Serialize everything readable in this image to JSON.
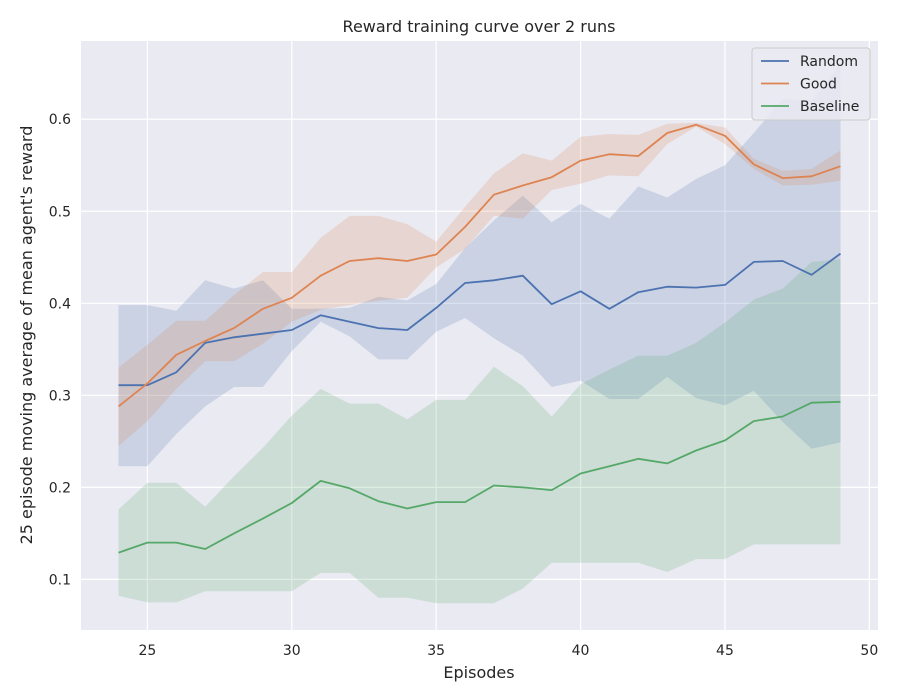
{
  "chart_data": {
    "type": "line",
    "title": "Reward training curve over 2 runs",
    "xlabel": "Episodes",
    "ylabel": "25 episode moving average of mean agent's reward",
    "xlim": [
      22.7,
      50.3
    ],
    "ylim": [
      0.045,
      0.685
    ],
    "xticks": [
      25,
      30,
      35,
      40,
      45,
      50
    ],
    "yticks": [
      0.1,
      0.2,
      0.3,
      0.4,
      0.5,
      0.6
    ],
    "grid": true,
    "legend_position": "top-right",
    "x": [
      24,
      25,
      26,
      27,
      28,
      29,
      30,
      31,
      32,
      33,
      34,
      35,
      36,
      37,
      38,
      39,
      40,
      41,
      42,
      43,
      44,
      45,
      46,
      47,
      48,
      49
    ],
    "series": [
      {
        "name": "Random",
        "color": "#4c72b0",
        "values": [
          0.311,
          0.311,
          0.325,
          0.357,
          0.363,
          0.367,
          0.371,
          0.387,
          0.38,
          0.373,
          0.371,
          0.395,
          0.422,
          0.425,
          0.43,
          0.399,
          0.413,
          0.394,
          0.412,
          0.418,
          0.417,
          0.42,
          0.445,
          0.446,
          0.431,
          0.454
        ],
        "lower": [
          0.223,
          0.223,
          0.258,
          0.288,
          0.309,
          0.309,
          0.348,
          0.38,
          0.364,
          0.339,
          0.339,
          0.369,
          0.384,
          0.362,
          0.343,
          0.309,
          0.316,
          0.296,
          0.296,
          0.32,
          0.297,
          0.289,
          0.305,
          0.271,
          0.242,
          0.249
        ],
        "upper": [
          0.398,
          0.398,
          0.392,
          0.425,
          0.416,
          0.425,
          0.394,
          0.394,
          0.395,
          0.407,
          0.403,
          0.421,
          0.46,
          0.49,
          0.517,
          0.488,
          0.508,
          0.492,
          0.527,
          0.515,
          0.535,
          0.55,
          0.585,
          0.622,
          0.62,
          0.66
        ]
      },
      {
        "name": "Good",
        "color": "#dd8452",
        "values": [
          0.288,
          0.313,
          0.344,
          0.359,
          0.373,
          0.394,
          0.406,
          0.43,
          0.446,
          0.449,
          0.446,
          0.453,
          0.483,
          0.518,
          0.528,
          0.537,
          0.555,
          0.562,
          0.56,
          0.585,
          0.594,
          0.582,
          0.551,
          0.536,
          0.538,
          0.549
        ],
        "lower": [
          0.245,
          0.272,
          0.307,
          0.337,
          0.337,
          0.356,
          0.38,
          0.393,
          0.398,
          0.403,
          0.406,
          0.439,
          0.459,
          0.495,
          0.492,
          0.523,
          0.53,
          0.539,
          0.538,
          0.573,
          0.592,
          0.573,
          0.546,
          0.528,
          0.529,
          0.533
        ],
        "upper": [
          0.33,
          0.355,
          0.381,
          0.381,
          0.409,
          0.434,
          0.434,
          0.471,
          0.495,
          0.495,
          0.486,
          0.467,
          0.505,
          0.541,
          0.563,
          0.555,
          0.581,
          0.584,
          0.583,
          0.595,
          0.596,
          0.591,
          0.557,
          0.544,
          0.546,
          0.566
        ]
      },
      {
        "name": "Baseline",
        "color": "#55a868",
        "values": [
          0.129,
          0.14,
          0.14,
          0.133,
          0.15,
          0.166,
          0.183,
          0.207,
          0.199,
          0.185,
          0.177,
          0.184,
          0.184,
          0.202,
          0.2,
          0.197,
          0.215,
          0.223,
          0.231,
          0.226,
          0.24,
          0.251,
          0.272,
          0.277,
          0.292,
          0.293
        ],
        "lower": [
          0.082,
          0.075,
          0.075,
          0.087,
          0.087,
          0.087,
          0.087,
          0.107,
          0.107,
          0.08,
          0.08,
          0.074,
          0.074,
          0.074,
          0.09,
          0.118,
          0.118,
          0.118,
          0.118,
          0.108,
          0.122,
          0.122,
          0.138,
          0.138,
          0.138,
          0.138
        ],
        "upper": [
          0.176,
          0.205,
          0.205,
          0.179,
          0.212,
          0.243,
          0.278,
          0.307,
          0.291,
          0.291,
          0.274,
          0.295,
          0.295,
          0.331,
          0.31,
          0.277,
          0.312,
          0.328,
          0.343,
          0.343,
          0.357,
          0.379,
          0.404,
          0.416,
          0.445,
          0.448
        ]
      }
    ]
  }
}
